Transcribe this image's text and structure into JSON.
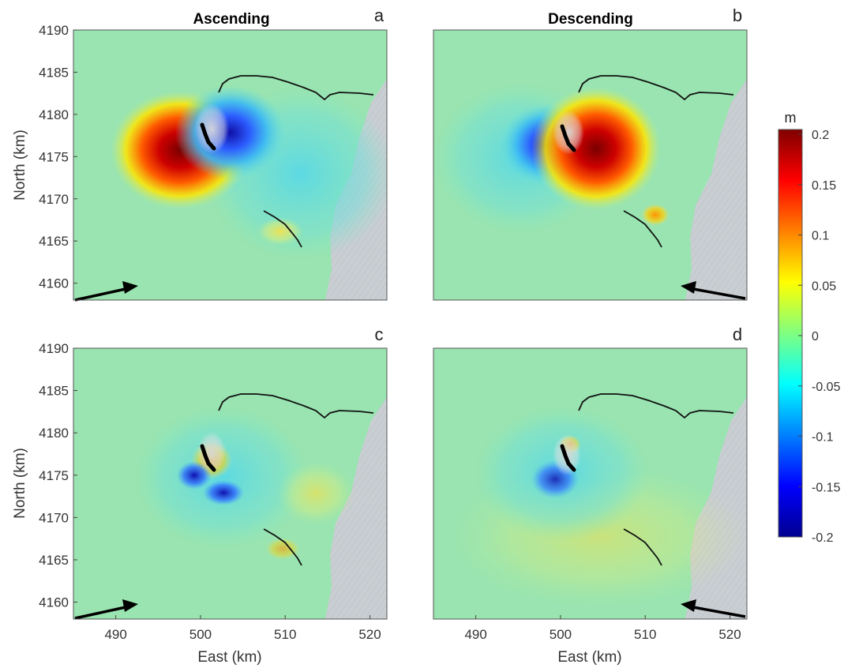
{
  "panels": [
    {
      "id": "a",
      "letter": "a",
      "column_title": "Ascending",
      "orbit": "ascending",
      "component": "primary"
    },
    {
      "id": "b",
      "letter": "b",
      "column_title": "Descending",
      "orbit": "descending",
      "component": "primary"
    },
    {
      "id": "c",
      "letter": "c",
      "column_title": "",
      "orbit": "ascending",
      "component": "residual"
    },
    {
      "id": "d",
      "letter": "d",
      "column_title": "",
      "orbit": "descending",
      "component": "residual"
    }
  ],
  "axes": {
    "xlabel": "East (km)",
    "ylabel": "North (km)",
    "x_ticks": [
      "490",
      "500",
      "510",
      "520"
    ],
    "y_ticks": [
      "4190",
      "4185",
      "4180",
      "4175",
      "4170",
      "4165",
      "4160"
    ],
    "xlim": [
      485,
      522
    ],
    "ylim": [
      4158,
      4190
    ]
  },
  "colorbar": {
    "unit": "m",
    "min": -0.2,
    "max": 0.2,
    "ticks": [
      "0.2",
      "0.15",
      "0.1",
      "0.05",
      "0",
      "-0.05",
      "-0.1",
      "-0.15",
      "-0.2"
    ],
    "colormap": "jet",
    "colors": [
      "#00008f",
      "#0000ff",
      "#0080ff",
      "#00ffff",
      "#80ff80",
      "#ffff00",
      "#ff8000",
      "#ff0000",
      "#800000"
    ]
  },
  "map_colors": {
    "background": "#99e4b0",
    "sea": "#c9ced3",
    "fault": "#111111"
  },
  "icons": {
    "los_arrow": "arrow-icon"
  }
}
